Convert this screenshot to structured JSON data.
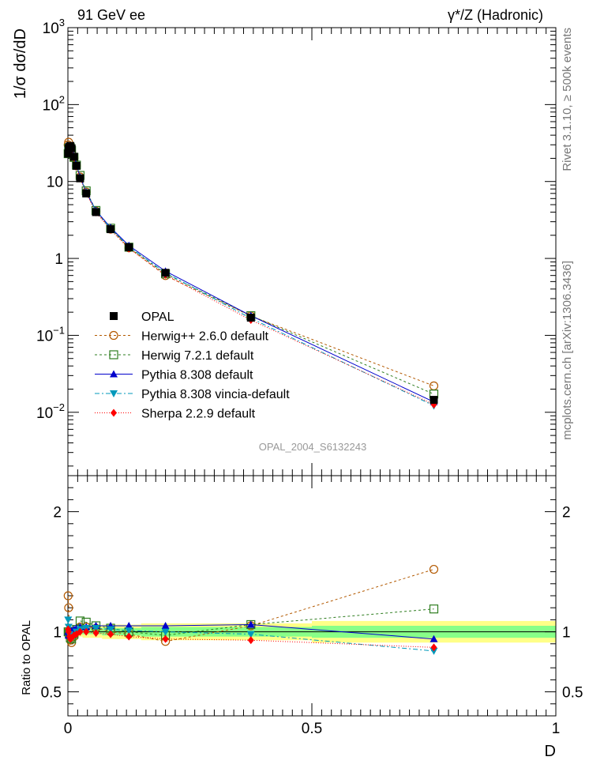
{
  "chart_data": {
    "type": "scatter",
    "header_left": "91 GeV ee",
    "header_right": "γ*/Z (Hadronic)",
    "ylabel": "1/σ dσ/dD",
    "xlabel": "D",
    "ratio_ylabel": "Ratio to OPAL",
    "side_top": "Rivet 3.1.10, ≥ 500k events",
    "side_bottom": "mcplots.cern.ch [arXiv:1306.3436]",
    "watermark": "OPAL_2004_S6132243",
    "xlim": [
      0,
      1
    ],
    "ylim": [
      0.0015,
      1000
    ],
    "ratio_ylim": [
      0.3,
      2.3
    ],
    "x_ticks": [
      {
        "v": 0,
        "label": "0"
      },
      {
        "v": 0.5,
        "label": "0.5"
      },
      {
        "v": 1,
        "label": "1"
      }
    ],
    "y_ticks": [
      {
        "v": 1000,
        "base": "10",
        "exp": "3"
      },
      {
        "v": 100,
        "base": "10",
        "exp": "2"
      },
      {
        "v": 10,
        "base": "10",
        "exp": ""
      },
      {
        "v": 1,
        "base": "1",
        "exp": ""
      },
      {
        "v": 0.1,
        "base": "10",
        "exp": "−1"
      },
      {
        "v": 0.01,
        "base": "10",
        "exp": "−2"
      }
    ],
    "ratio_ticks": [
      {
        "v": 0.5,
        "label": "0.5"
      },
      {
        "v": 1,
        "label": "1"
      },
      {
        "v": 2,
        "label": "2"
      }
    ],
    "x": [
      0.0005,
      0.0015,
      0.003,
      0.005,
      0.0075,
      0.0125,
      0.0175,
      0.025,
      0.0375,
      0.0575,
      0.0875,
      0.125,
      0.2,
      0.375,
      0.75
    ],
    "data": {
      "name": "OPAL",
      "color": "#000000",
      "values": [
        23,
        27,
        28,
        29,
        27,
        21,
        16,
        11,
        7.0,
        4.0,
        2.4,
        1.4,
        0.65,
        0.17,
        0.0145
      ],
      "x_err": [
        0.0005,
        0.0005,
        0.001,
        0.001,
        0.0015,
        0.0025,
        0.0025,
        0.005,
        0.0075,
        0.0125,
        0.0175,
        0.025,
        0.05,
        0.125,
        0.25
      ],
      "band_inner": [
        0.02,
        0.02,
        0.02,
        0.02,
        0.02,
        0.02,
        0.02,
        0.02,
        0.02,
        0.02,
        0.03,
        0.03,
        0.04,
        0.04,
        0.05
      ],
      "band_outer": [
        0.04,
        0.04,
        0.04,
        0.04,
        0.04,
        0.04,
        0.04,
        0.04,
        0.05,
        0.05,
        0.06,
        0.06,
        0.07,
        0.07,
        0.09
      ]
    },
    "series": [
      {
        "name": "Herwig++ 2.6.0 default",
        "color": "#b35900",
        "dash": "3,3",
        "marker": "circle-open",
        "ratio": [
          1.3,
          1.2,
          1.0,
          0.93,
          0.91,
          0.96,
          1.0,
          1.04,
          1.04,
          1.03,
          1.0,
          0.98,
          0.92,
          1.05,
          1.52
        ]
      },
      {
        "name": "Herwig 7.2.1 default",
        "color": "#2e7d1f",
        "dash": "3,3",
        "marker": "square-open",
        "ratio": [
          1.0,
          1.0,
          0.98,
          0.95,
          0.94,
          0.98,
          1.02,
          1.09,
          1.08,
          1.05,
          1.03,
          1.0,
          0.97,
          1.06,
          1.19
        ]
      },
      {
        "name": "Pythia 8.308 default",
        "color": "#0000cc",
        "dash": "",
        "marker": "triangle-up",
        "ratio": [
          1.0,
          0.97,
          0.98,
          1.0,
          1.01,
          1.02,
          1.03,
          1.04,
          1.04,
          1.05,
          1.05,
          1.05,
          1.05,
          1.06,
          0.94
        ]
      },
      {
        "name": "Pythia 8.308 vincia-default",
        "color": "#0099bb",
        "dash": "6,3,2,3",
        "marker": "triangle-down",
        "ratio": [
          1.1,
          1.04,
          0.98,
          0.96,
          0.95,
          0.97,
          1.0,
          1.02,
          1.03,
          1.03,
          1.02,
          1.01,
          1.0,
          0.98,
          0.84
        ]
      },
      {
        "name": "Sherpa 2.2.9 default",
        "color": "#ff0000",
        "dash": "1,2",
        "marker": "diamond",
        "ratio": [
          1.02,
          1.0,
          0.96,
          0.94,
          0.95,
          0.97,
          0.98,
          1.0,
          1.0,
          0.99,
          0.98,
          0.96,
          0.94,
          0.93,
          0.87
        ]
      }
    ]
  }
}
